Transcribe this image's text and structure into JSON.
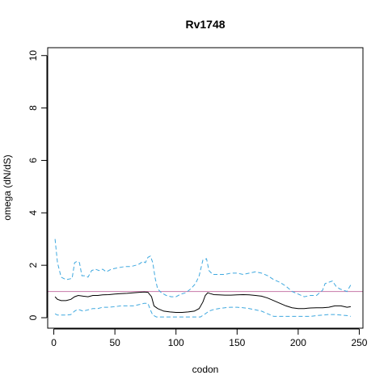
{
  "chart_data": {
    "type": "line",
    "title": "Rv1748",
    "xlabel": "codon",
    "ylabel": "omega (dN/dS)",
    "xlim": [
      -5,
      253
    ],
    "ylim": [
      -0.4,
      10.3
    ],
    "x_ticks": [
      0,
      50,
      100,
      150,
      200,
      250
    ],
    "x_tick_labels": [
      "0",
      "50",
      "100",
      "150",
      "200",
      "250"
    ],
    "y_ticks": [
      0,
      2,
      4,
      6,
      8,
      10
    ],
    "y_tick_labels": [
      "0",
      "2",
      "4",
      "6",
      "8",
      "10"
    ],
    "grid": false,
    "reference_line": {
      "y": 1,
      "color": "#c678a8"
    },
    "series": [
      {
        "role": "upper-bound",
        "style": "dashed",
        "color": "#3ea8df",
        "x": [
          1,
          3,
          6,
          10,
          15,
          17,
          19,
          21,
          23,
          25,
          28,
          31,
          34,
          37,
          40,
          43,
          47,
          52,
          58,
          63,
          67,
          70,
          73,
          75,
          77,
          79,
          81,
          83,
          85,
          88,
          92,
          96,
          100,
          104,
          108,
          112,
          116,
          119,
          122,
          125,
          127,
          130,
          135,
          140,
          145,
          150,
          155,
          160,
          165,
          170,
          175,
          180,
          185,
          190,
          195,
          200,
          205,
          210,
          215,
          220,
          222,
          225,
          228,
          231,
          234,
          237,
          240,
          243
        ],
        "y": [
          3.0,
          2.1,
          1.55,
          1.45,
          1.5,
          2.1,
          2.15,
          2.1,
          1.6,
          1.6,
          1.55,
          1.8,
          1.85,
          1.8,
          1.85,
          1.75,
          1.85,
          1.9,
          1.95,
          1.95,
          2.0,
          2.05,
          2.15,
          2.1,
          2.3,
          2.35,
          2.1,
          1.5,
          1.1,
          0.95,
          0.85,
          0.8,
          0.8,
          0.9,
          0.95,
          1.1,
          1.3,
          1.6,
          2.2,
          2.25,
          1.8,
          1.65,
          1.65,
          1.65,
          1.7,
          1.7,
          1.65,
          1.7,
          1.75,
          1.7,
          1.6,
          1.45,
          1.35,
          1.2,
          1.0,
          0.9,
          0.8,
          0.85,
          0.85,
          1.05,
          1.3,
          1.35,
          1.4,
          1.2,
          1.1,
          1.05,
          1.0,
          1.25
        ]
      },
      {
        "role": "estimate",
        "style": "solid",
        "color": "#000000",
        "x": [
          1,
          3,
          6,
          10,
          14,
          17,
          20,
          24,
          28,
          32,
          36,
          40,
          45,
          50,
          55,
          60,
          65,
          70,
          74,
          77,
          80,
          82,
          85,
          90,
          95,
          100,
          105,
          110,
          115,
          119,
          122,
          124,
          126,
          128,
          131,
          135,
          140,
          145,
          150,
          155,
          160,
          165,
          170,
          175,
          180,
          185,
          190,
          195,
          200,
          205,
          210,
          215,
          220,
          225,
          230,
          235,
          240,
          243
        ],
        "y": [
          0.8,
          0.7,
          0.65,
          0.65,
          0.7,
          0.8,
          0.85,
          0.82,
          0.8,
          0.85,
          0.85,
          0.87,
          0.88,
          0.9,
          0.92,
          0.93,
          0.95,
          0.97,
          0.98,
          0.97,
          0.8,
          0.45,
          0.35,
          0.25,
          0.22,
          0.2,
          0.2,
          0.22,
          0.25,
          0.35,
          0.6,
          0.85,
          0.95,
          0.92,
          0.88,
          0.87,
          0.86,
          0.86,
          0.87,
          0.88,
          0.87,
          0.85,
          0.82,
          0.75,
          0.65,
          0.55,
          0.45,
          0.38,
          0.35,
          0.35,
          0.37,
          0.38,
          0.38,
          0.4,
          0.45,
          0.45,
          0.4,
          0.42
        ]
      },
      {
        "role": "lower-bound",
        "style": "dashed",
        "color": "#3ea8df",
        "x": [
          1,
          3,
          6,
          10,
          14,
          17,
          19,
          21,
          24,
          28,
          32,
          36,
          40,
          45,
          50,
          55,
          60,
          65,
          70,
          74,
          77,
          79,
          81,
          84,
          90,
          100,
          110,
          120,
          124,
          127,
          130,
          135,
          140,
          145,
          150,
          155,
          160,
          165,
          170,
          175,
          180,
          185,
          190,
          195,
          200,
          205,
          210,
          215,
          220,
          225,
          230,
          235,
          240,
          243
        ],
        "y": [
          0.15,
          0.1,
          0.1,
          0.1,
          0.12,
          0.25,
          0.3,
          0.3,
          0.25,
          0.3,
          0.35,
          0.35,
          0.4,
          0.4,
          0.42,
          0.45,
          0.45,
          0.45,
          0.5,
          0.55,
          0.55,
          0.3,
          0.1,
          0.03,
          0.03,
          0.03,
          0.03,
          0.03,
          0.15,
          0.25,
          0.3,
          0.35,
          0.38,
          0.4,
          0.4,
          0.38,
          0.35,
          0.3,
          0.25,
          0.15,
          0.05,
          0.05,
          0.05,
          0.05,
          0.05,
          0.05,
          0.05,
          0.08,
          0.1,
          0.12,
          0.12,
          0.1,
          0.08,
          0.05
        ]
      }
    ]
  }
}
